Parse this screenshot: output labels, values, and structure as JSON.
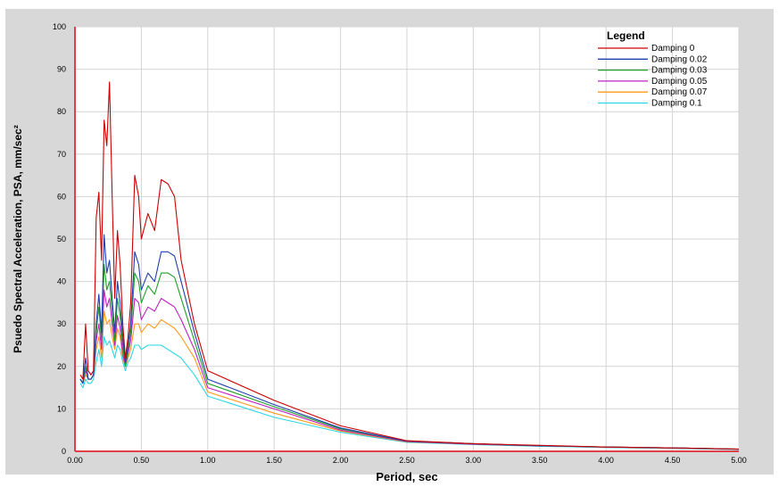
{
  "chart_data": {
    "type": "line",
    "xlabel": "Period, sec",
    "ylabel": "Psuedo Spectral Acceleration, PSA, mm/sec²",
    "xlim": [
      0,
      5
    ],
    "ylim": [
      0,
      100
    ],
    "xticks": [
      "0.00",
      "0.50",
      "1.00",
      "1.50",
      "2.00",
      "2.50",
      "3.00",
      "3.50",
      "4.00",
      "4.50",
      "5.00"
    ],
    "yticks": [
      "0",
      "10",
      "20",
      "30",
      "40",
      "50",
      "60",
      "70",
      "80",
      "90",
      "100"
    ],
    "grid": true,
    "legend": {
      "title": "Legend",
      "position": "top-right"
    },
    "series": [
      {
        "name": "Damping 0",
        "color": "#cc0000",
        "x": [
          0.04,
          0.06,
          0.08,
          0.1,
          0.12,
          0.14,
          0.16,
          0.18,
          0.2,
          0.22,
          0.24,
          0.26,
          0.28,
          0.3,
          0.32,
          0.34,
          0.36,
          0.38,
          0.4,
          0.42,
          0.45,
          0.48,
          0.5,
          0.55,
          0.6,
          0.65,
          0.7,
          0.75,
          0.8,
          0.9,
          1.0,
          1.5,
          2.0,
          2.5,
          3.0,
          3.5,
          4.0,
          4.5,
          5.0
        ],
        "y": [
          18,
          17,
          30,
          19,
          18,
          19,
          55,
          61,
          45,
          78,
          72,
          87,
          60,
          36,
          52,
          44,
          30,
          22,
          27,
          35,
          65,
          60,
          50,
          56,
          52,
          64,
          63,
          60,
          45,
          30,
          19,
          12,
          6,
          2.5,
          1.8,
          1.4,
          1.0,
          0.8,
          0.5
        ]
      },
      {
        "name": "Damping 0.02",
        "color": "#1f3fb0",
        "x": [
          0.04,
          0.06,
          0.08,
          0.1,
          0.12,
          0.14,
          0.16,
          0.18,
          0.2,
          0.22,
          0.24,
          0.26,
          0.28,
          0.3,
          0.32,
          0.34,
          0.36,
          0.38,
          0.4,
          0.42,
          0.45,
          0.48,
          0.5,
          0.55,
          0.6,
          0.65,
          0.7,
          0.75,
          0.8,
          0.9,
          1.0,
          1.5,
          2.0,
          2.5,
          3.0,
          3.5,
          4.0,
          4.5,
          5.0
        ],
        "y": [
          17,
          16,
          22,
          17,
          17,
          18,
          30,
          37,
          28,
          51,
          42,
          45,
          36,
          28,
          40,
          35,
          27,
          21,
          25,
          30,
          47,
          44,
          38,
          42,
          40,
          47,
          47,
          46,
          40,
          28,
          17,
          11,
          5.5,
          2.4,
          1.8,
          1.3,
          1.0,
          0.8,
          0.5
        ]
      },
      {
        "name": "Damping 0.03",
        "color": "#22a02a",
        "x": [
          0.04,
          0.06,
          0.08,
          0.1,
          0.12,
          0.14,
          0.16,
          0.18,
          0.2,
          0.22,
          0.24,
          0.26,
          0.28,
          0.3,
          0.32,
          0.34,
          0.36,
          0.38,
          0.4,
          0.42,
          0.45,
          0.48,
          0.5,
          0.55,
          0.6,
          0.65,
          0.7,
          0.75,
          0.8,
          0.9,
          1.0,
          1.5,
          2.0,
          2.5,
          3.0,
          3.5,
          4.0,
          4.5,
          5.0
        ],
        "y": [
          17,
          16,
          20,
          17,
          17,
          18,
          28,
          34,
          26,
          44,
          38,
          40,
          33,
          26,
          36,
          32,
          25,
          20,
          24,
          28,
          42,
          40,
          35,
          39,
          37,
          42,
          42,
          41,
          36,
          26,
          16,
          10.5,
          5.3,
          2.4,
          1.8,
          1.3,
          1.0,
          0.8,
          0.5
        ]
      },
      {
        "name": "Damping 0.05",
        "color": "#c020c0",
        "x": [
          0.04,
          0.06,
          0.08,
          0.1,
          0.12,
          0.14,
          0.16,
          0.18,
          0.2,
          0.22,
          0.24,
          0.26,
          0.28,
          0.3,
          0.32,
          0.34,
          0.36,
          0.38,
          0.4,
          0.42,
          0.45,
          0.48,
          0.5,
          0.55,
          0.6,
          0.65,
          0.7,
          0.75,
          0.8,
          0.9,
          1.0,
          1.5,
          2.0,
          2.5,
          3.0,
          3.5,
          4.0,
          4.5,
          5.0
        ],
        "y": [
          17,
          16,
          19,
          17,
          17,
          18,
          26,
          30,
          24,
          38,
          34,
          36,
          30,
          25,
          32,
          29,
          23,
          20,
          23,
          26,
          36,
          35,
          31,
          34,
          33,
          36,
          35,
          34,
          31,
          24,
          15,
          10,
          5,
          2.3,
          1.7,
          1.3,
          1.0,
          0.8,
          0.5
        ]
      },
      {
        "name": "Damping 0.07",
        "color": "#ff9a1a",
        "x": [
          0.04,
          0.06,
          0.08,
          0.1,
          0.12,
          0.14,
          0.16,
          0.18,
          0.2,
          0.22,
          0.24,
          0.26,
          0.28,
          0.3,
          0.32,
          0.34,
          0.36,
          0.38,
          0.4,
          0.42,
          0.45,
          0.48,
          0.5,
          0.55,
          0.6,
          0.65,
          0.7,
          0.75,
          0.8,
          0.9,
          1.0,
          1.5,
          2.0,
          2.5,
          3.0,
          3.5,
          4.0,
          4.5,
          5.0
        ],
        "y": [
          17,
          16,
          18,
          17,
          17,
          18,
          24,
          27,
          22,
          33,
          30,
          31,
          27,
          24,
          29,
          27,
          22,
          20,
          22,
          24,
          30,
          30,
          28,
          30,
          29,
          31,
          30,
          29,
          27,
          22,
          14,
          9,
          4.8,
          2.2,
          1.7,
          1.3,
          1.0,
          0.8,
          0.5
        ]
      },
      {
        "name": "Damping 0.1",
        "color": "#2ad6e6",
        "x": [
          0.04,
          0.06,
          0.08,
          0.1,
          0.12,
          0.14,
          0.16,
          0.18,
          0.2,
          0.22,
          0.24,
          0.26,
          0.28,
          0.3,
          0.32,
          0.34,
          0.36,
          0.38,
          0.4,
          0.42,
          0.45,
          0.48,
          0.5,
          0.55,
          0.6,
          0.65,
          0.7,
          0.75,
          0.8,
          0.9,
          1.0,
          1.5,
          2.0,
          2.5,
          3.0,
          3.5,
          4.0,
          4.5,
          5.0
        ],
        "y": [
          16,
          15,
          17,
          16,
          16,
          17,
          21,
          24,
          20,
          27,
          25,
          26,
          24,
          22,
          25,
          24,
          21,
          19,
          21,
          22,
          25,
          25,
          24,
          25,
          25,
          25,
          24,
          23,
          22,
          18,
          13,
          8,
          4.5,
          2.1,
          1.6,
          1.2,
          0.9,
          0.7,
          0.4
        ]
      }
    ]
  }
}
